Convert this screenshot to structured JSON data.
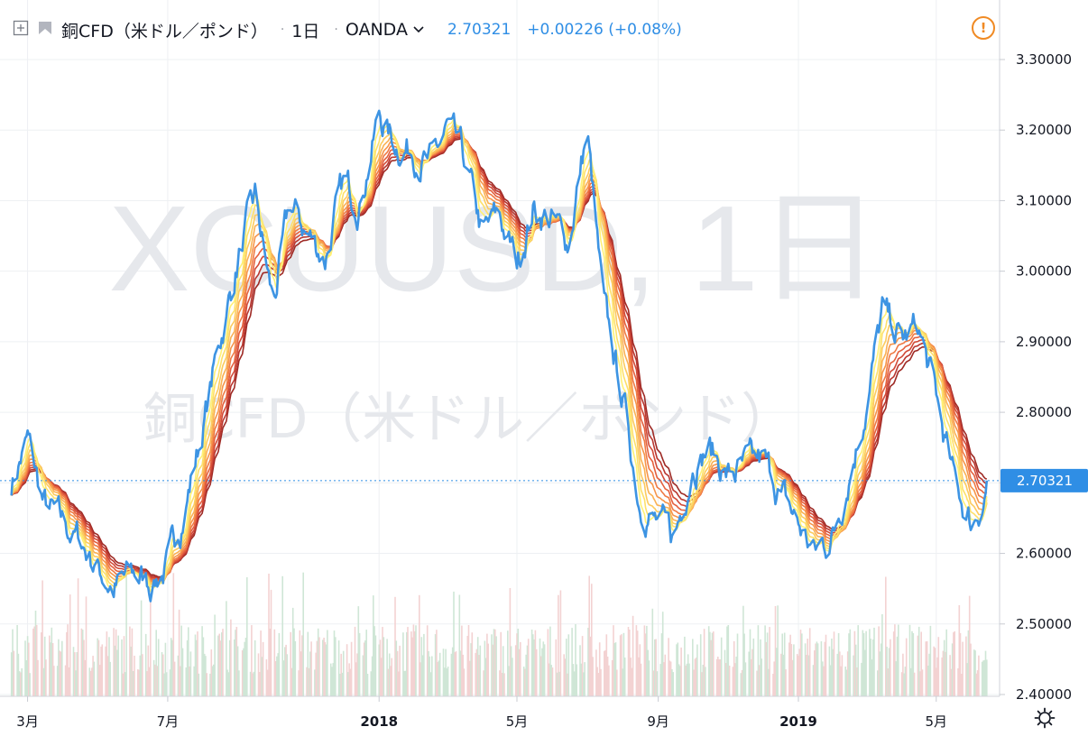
{
  "header": {
    "symbol_title": "銅CFD（米ドル／ポンド）",
    "separator": "·",
    "interval": "1日",
    "exchange": "OANDA",
    "last_price": "2.70321",
    "change": "+0.00226 (+0.08%)"
  },
  "watermark": {
    "line1": "XCUUSD, 1日",
    "line2": "銅CFD（米ドル／ポンド）"
  },
  "colors": {
    "price_line": "#3d94e3",
    "ribbon": [
      "#fff176",
      "#fde06a",
      "#fccb5e",
      "#fab154",
      "#f6954a",
      "#ef7a44",
      "#e4603e",
      "#d14a38",
      "#b93730",
      "#9e2a25"
    ],
    "volume_up": "#cfe6d6",
    "volume_down": "#f3d2d2",
    "price_label_bg": "#2f8ee5",
    "alert": "#f08a24"
  },
  "chart_data": {
    "type": "line",
    "title": "銅CFD（米ドル／ポンド）",
    "interval": "1日",
    "source": "OANDA",
    "x_tick_labels": [
      "3月",
      "7月",
      "2018",
      "5月",
      "9月",
      "2019",
      "5月"
    ],
    "y_tick_labels": [
      "3.30000",
      "3.20000",
      "3.10000",
      "3.00000",
      "2.90000",
      "2.80000",
      "2.70000",
      "2.60000",
      "2.50000",
      "2.40000"
    ],
    "ylim": [
      2.4,
      3.32
    ],
    "grid": true,
    "current_price": 2.70321,
    "current_price_label": "2.70321",
    "series": [
      {
        "x": [
          "2017-02-15",
          "2017-03-01",
          "2017-03-15",
          "2017-04-01",
          "2017-04-15",
          "2017-05-01",
          "2017-05-15",
          "2017-06-01",
          "2017-06-15",
          "2017-07-01",
          "2017-07-15",
          "2017-08-01",
          "2017-08-15",
          "2017-09-01",
          "2017-09-15",
          "2017-10-01",
          "2017-10-15",
          "2017-11-01",
          "2017-11-15",
          "2017-12-01",
          "2017-12-15",
          "2018-01-01",
          "2018-01-15",
          "2018-02-01",
          "2018-02-15",
          "2018-03-01",
          "2018-03-15",
          "2018-04-01",
          "2018-04-15",
          "2018-05-01",
          "2018-05-15",
          "2018-06-01",
          "2018-06-15",
          "2018-07-01",
          "2018-07-15",
          "2018-08-01",
          "2018-08-15",
          "2018-09-01",
          "2018-09-15",
          "2018-10-01",
          "2018-10-15",
          "2018-11-01",
          "2018-11-15",
          "2018-12-01",
          "2018-12-15",
          "2019-01-01",
          "2019-01-15",
          "2019-02-01",
          "2019-02-15",
          "2019-03-01",
          "2019-03-15",
          "2019-04-01",
          "2019-04-15",
          "2019-05-01",
          "2019-05-15",
          "2019-06-01",
          "2019-06-15"
        ],
        "values": [
          2.7,
          2.76,
          2.67,
          2.64,
          2.62,
          2.58,
          2.55,
          2.57,
          2.56,
          2.58,
          2.66,
          2.78,
          2.9,
          3.02,
          3.1,
          2.95,
          3.09,
          3.05,
          3.02,
          3.12,
          3.1,
          3.22,
          3.18,
          3.17,
          3.15,
          3.2,
          3.16,
          3.05,
          3.08,
          3.01,
          3.09,
          3.07,
          3.04,
          3.2,
          2.95,
          2.82,
          2.68,
          2.64,
          2.62,
          2.73,
          2.75,
          2.71,
          2.72,
          2.73,
          2.69,
          2.64,
          2.6,
          2.63,
          2.72,
          2.81,
          2.94,
          2.9,
          2.92,
          2.82,
          2.71,
          2.64,
          2.7
        ]
      }
    ]
  }
}
